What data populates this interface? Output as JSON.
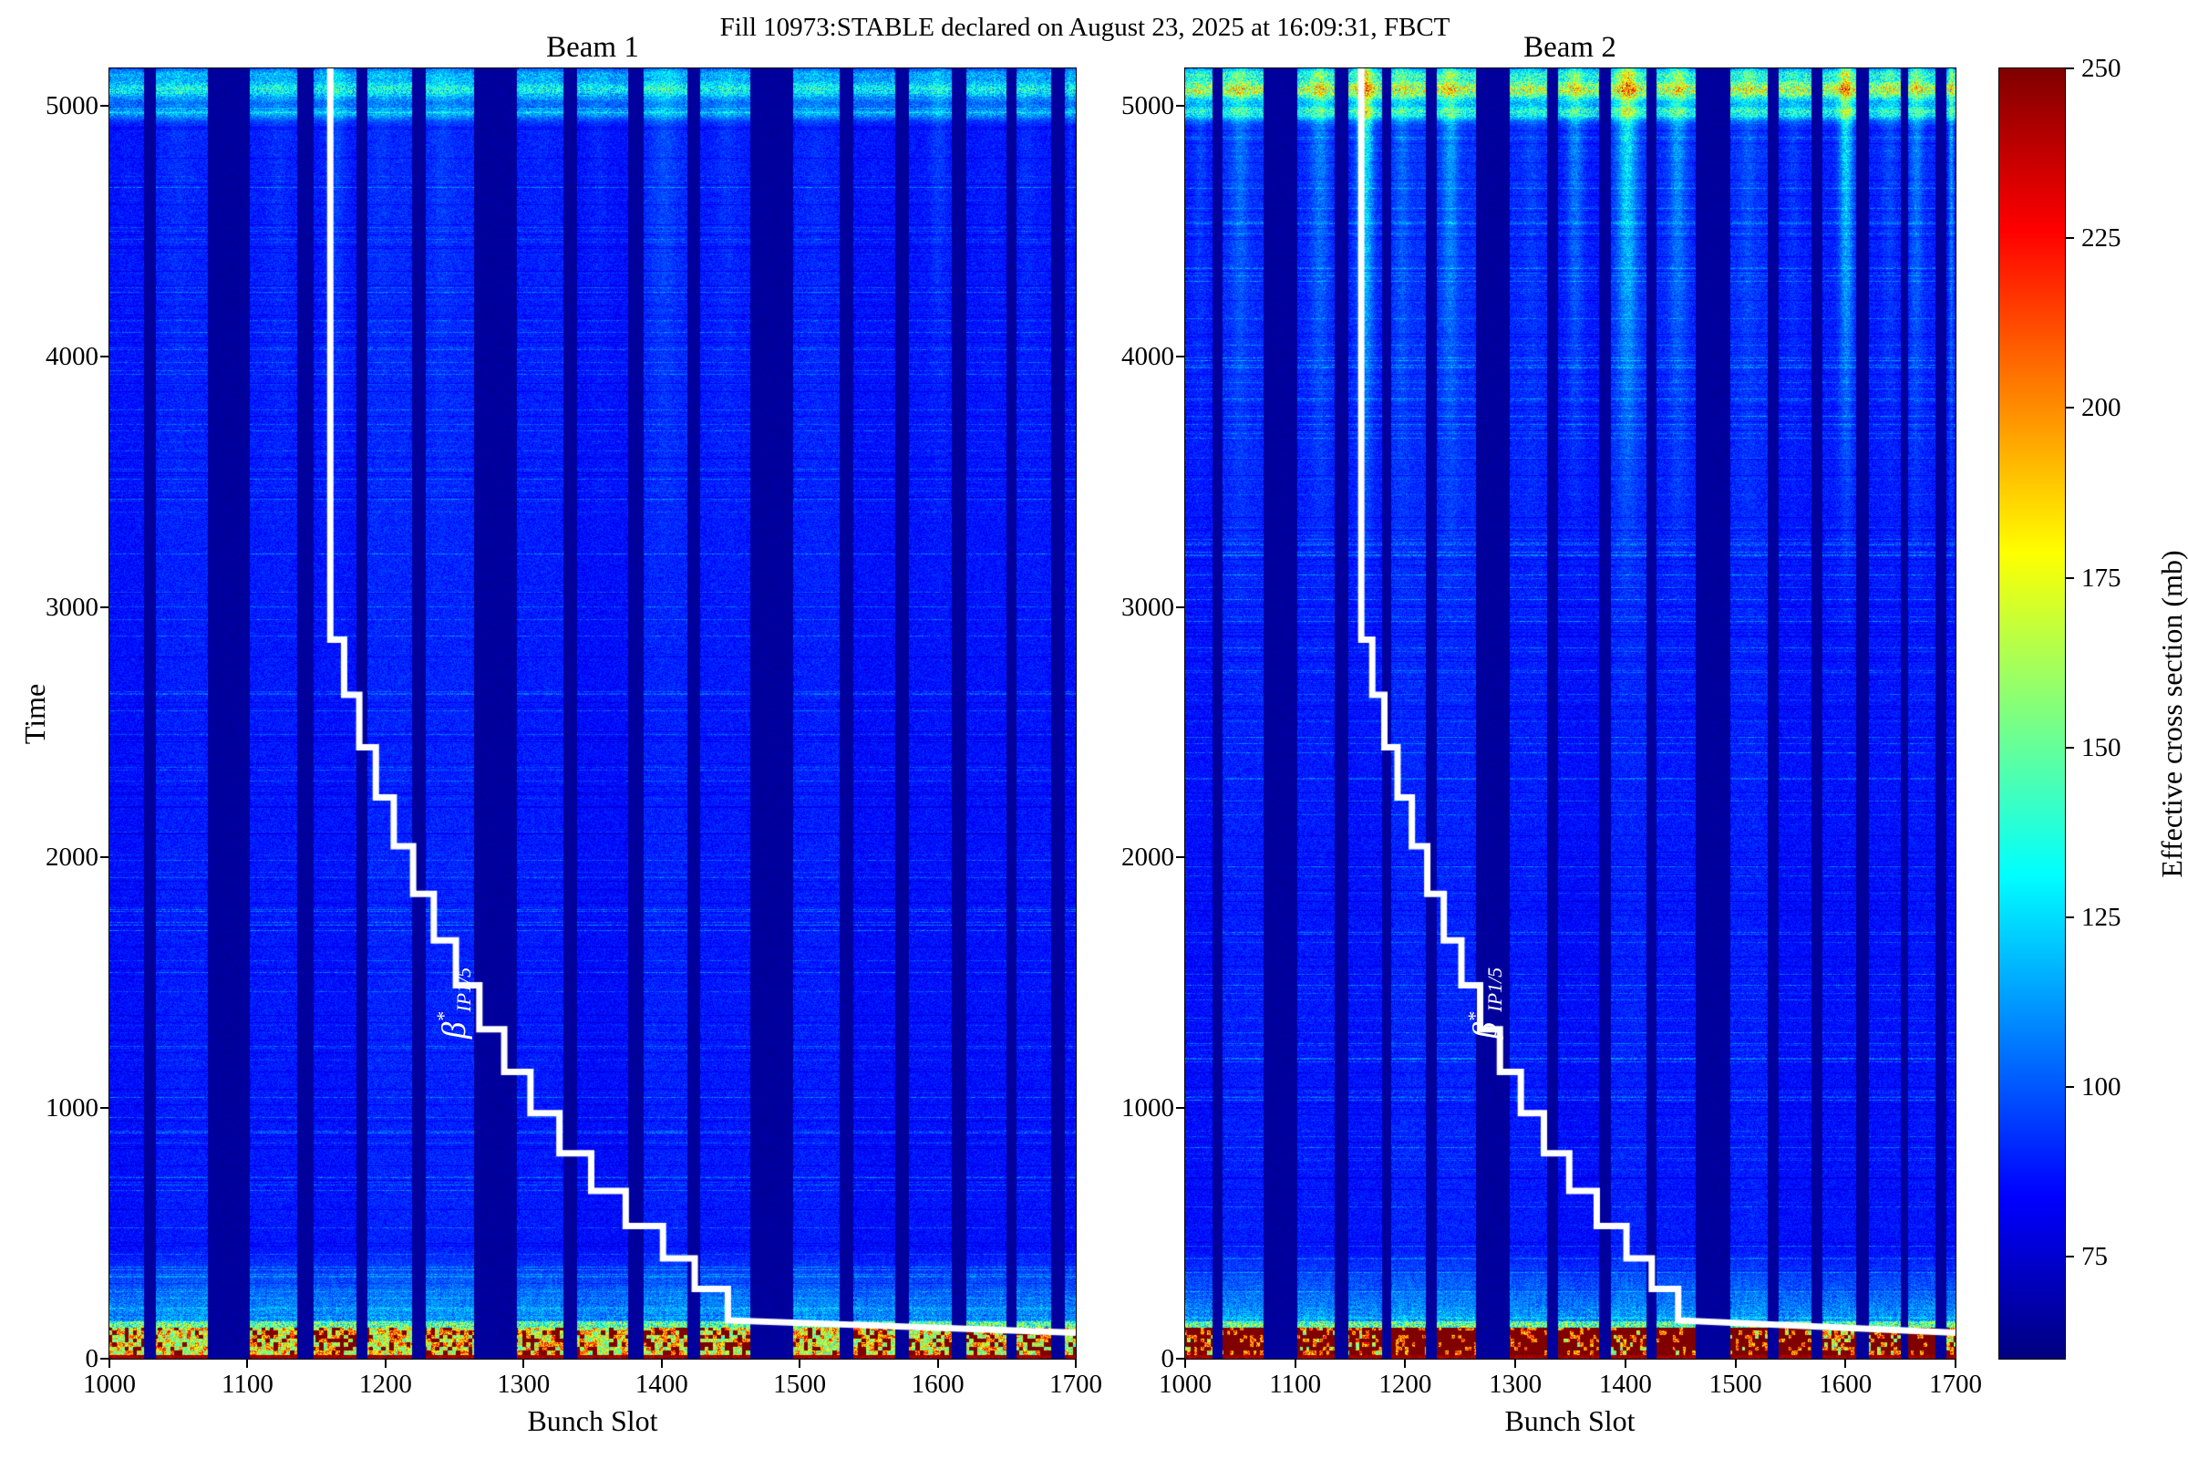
{
  "figure": {
    "title": "Fill 10973:STABLE declared on August 23, 2025 at 16:09:31, FBCT",
    "background": "#ffffff"
  },
  "panels": [
    {
      "title": "Beam 1",
      "xlabel": "Bunch Slot",
      "ylabel": "Time"
    },
    {
      "title": "Beam 2",
      "xlabel": "Bunch Slot"
    }
  ],
  "beta_star": {
    "symbol": "β",
    "sup": "*",
    "sub": "IP1/5"
  },
  "colorbar": {
    "label": "Effective cross section (mb)"
  },
  "chart_data": {
    "type": "heatmap",
    "title": "Fill 10973:STABLE declared on August 23, 2025 at 16:09:31, FBCT",
    "panels": [
      {
        "name": "Beam 1",
        "streak_strength": 0.22,
        "top_band_amp": 48,
        "red_threshold": 0.88,
        "body_gradient": 1.5
      },
      {
        "name": "Beam 2",
        "streak_strength": 1.0,
        "top_band_amp": 80,
        "red_threshold": 0.48,
        "body_gradient": 4
      }
    ],
    "x": {
      "label": "Bunch Slot",
      "range": [
        1000,
        1700
      ],
      "ticks": [
        1000,
        1100,
        1200,
        1300,
        1400,
        1500,
        1600,
        1700
      ]
    },
    "y": {
      "label": "Time",
      "range": [
        0,
        5150
      ],
      "ticks": [
        0,
        1000,
        2000,
        3000,
        4000,
        5000
      ]
    },
    "colorbar": {
      "label": "Effective cross section (mb)",
      "colormap": "jet",
      "vmin": 60,
      "vmax": 250,
      "ticks": [
        75,
        100,
        125,
        150,
        175,
        200,
        225,
        250
      ]
    },
    "trains": [
      [
        1000,
        1025
      ],
      [
        1034,
        1071
      ],
      [
        1102,
        1136
      ],
      [
        1148,
        1179
      ],
      [
        1187,
        1219
      ],
      [
        1229,
        1264
      ],
      [
        1295,
        1329
      ],
      [
        1339,
        1376
      ],
      [
        1387,
        1419
      ],
      [
        1428,
        1464
      ],
      [
        1495,
        1529
      ],
      [
        1539,
        1569
      ],
      [
        1579,
        1610
      ],
      [
        1621,
        1650
      ],
      [
        1657,
        1682
      ],
      [
        1692,
        1700
      ]
    ],
    "gap_value": 64,
    "base_value": 86,
    "bottom_band": {
      "time_range": [
        0,
        150
      ],
      "description": "high cross-section band, yellow-red with dark-red saturation at time 0"
    },
    "top_band": {
      "time_range": [
        4900,
        5150
      ],
      "streak_times": [
        5128,
        5065,
        4975
      ]
    },
    "beta_star_line": {
      "label": "β*IP1/5",
      "color": "#ffffff",
      "width": 7,
      "points": [
        [
          1160,
          5150
        ],
        [
          1160,
          2870
        ],
        [
          1170,
          2870
        ],
        [
          1170,
          2650
        ],
        [
          1181,
          2650
        ],
        [
          1181,
          2440
        ],
        [
          1193,
          2440
        ],
        [
          1193,
          2240
        ],
        [
          1206,
          2240
        ],
        [
          1206,
          2045
        ],
        [
          1220,
          2045
        ],
        [
          1220,
          1855
        ],
        [
          1235,
          1855
        ],
        [
          1235,
          1670
        ],
        [
          1251,
          1670
        ],
        [
          1251,
          1490
        ],
        [
          1268,
          1490
        ],
        [
          1268,
          1315
        ],
        [
          1286,
          1315
        ],
        [
          1286,
          1145
        ],
        [
          1305,
          1145
        ],
        [
          1305,
          980
        ],
        [
          1326,
          980
        ],
        [
          1326,
          820
        ],
        [
          1349,
          820
        ],
        [
          1349,
          670
        ],
        [
          1374,
          670
        ],
        [
          1374,
          530
        ],
        [
          1401,
          530
        ],
        [
          1401,
          400
        ],
        [
          1424,
          400
        ],
        [
          1424,
          278
        ],
        [
          1448,
          278
        ],
        [
          1448,
          153
        ],
        [
          1700,
          104
        ]
      ]
    }
  }
}
